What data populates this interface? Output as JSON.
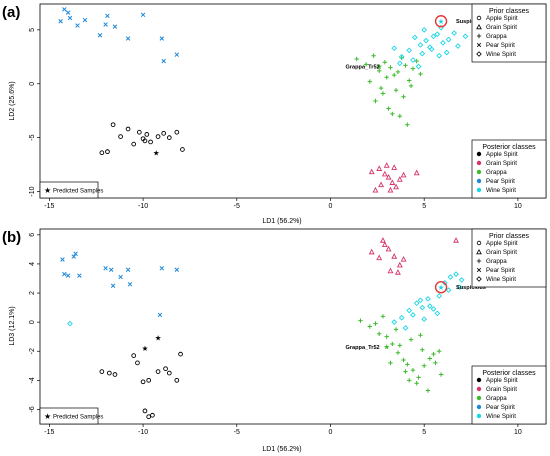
{
  "chart_data": [
    {
      "type": "scatter",
      "panel_label": "(a)",
      "xlabel": "LD1 (56.2%)",
      "ylabel": "LD2 (25.6%)",
      "xlim": [
        -15.5,
        11.5
      ],
      "ylim": [
        -10.6,
        7.4
      ],
      "xticks": [
        -15,
        -10,
        -5,
        0,
        5,
        10
      ],
      "yticks": [
        -10,
        -5,
        0,
        5
      ],
      "grid": false,
      "annotations": [
        {
          "text": "Suspicious",
          "x": 6.7,
          "y": 5.8
        },
        {
          "text": "Grappa_Tr52",
          "x": 0.8,
          "y": 1.6
        }
      ],
      "highlight": {
        "x": 5.9,
        "y": 5.8
      },
      "legends": {
        "prior": {
          "title": "Prior classes",
          "position": "top-right",
          "items": [
            {
              "label": "Apple Spirit",
              "symbol": "circle"
            },
            {
              "label": "Grain Spirit",
              "symbol": "triangle"
            },
            {
              "label": "Grappa",
              "symbol": "plus"
            },
            {
              "label": "Pear Spirit",
              "symbol": "cross"
            },
            {
              "label": "Wine Spirit",
              "symbol": "diamond"
            }
          ]
        },
        "posterior": {
          "title": "Posterior classes",
          "position": "bottom-right",
          "items": [
            {
              "label": "Apple Spirit",
              "color": "#000000"
            },
            {
              "label": "Grain Spirit",
              "color": "#d6336c"
            },
            {
              "label": "Grappa",
              "color": "#3cba2c"
            },
            {
              "label": "Pear Spirit",
              "color": "#1e88d8"
            },
            {
              "label": "Wine Spirit",
              "color": "#19d6e4"
            }
          ]
        },
        "predicted": {
          "label": "Predicted Samples",
          "position": "bottom-left"
        }
      },
      "series": [
        {
          "name": "Apple Spirit",
          "symbol": "circle",
          "color": "#000000",
          "x": [
            -11.6,
            -11.2,
            -10.8,
            -10.2,
            -10.0,
            -9.8,
            -9.6,
            -9.2,
            -8.9,
            -8.6,
            -8.2,
            -7.9,
            -12.2,
            -11.9,
            -10.5,
            -9.9
          ],
          "y": [
            -3.8,
            -4.9,
            -4.2,
            -4.5,
            -5.1,
            -4.7,
            -5.4,
            -4.9,
            -4.6,
            -5.0,
            -4.5,
            -6.1,
            -6.4,
            -6.3,
            -5.6,
            -5.3
          ]
        },
        {
          "name": "Grain Spirit",
          "symbol": "triangle",
          "color": "#d6336c",
          "x": [
            2.2,
            2.6,
            2.9,
            3.1,
            3.3,
            3.5,
            3.7,
            3.0,
            2.7,
            3.4,
            3.9,
            2.4,
            3.2,
            4.6
          ],
          "y": [
            -8.2,
            -7.9,
            -8.4,
            -8.7,
            -9.2,
            -9.6,
            -8.9,
            -7.6,
            -9.4,
            -7.8,
            -8.5,
            -9.9,
            -9.9,
            -8.3
          ]
        },
        {
          "name": "Grappa",
          "symbol": "plus",
          "color": "#3cba2c",
          "x": [
            1.4,
            1.9,
            2.3,
            2.6,
            2.9,
            3.2,
            3.4,
            3.6,
            3.8,
            4.0,
            4.2,
            4.4,
            4.6,
            4.8,
            2.1,
            2.7,
            3.0,
            3.5,
            3.9,
            4.3,
            2.4,
            3.1,
            3.7,
            4.1,
            2.8,
            3.3
          ],
          "y": [
            2.3,
            1.8,
            2.6,
            1.2,
            2.0,
            1.5,
            0.8,
            1.1,
            2.4,
            1.7,
            0.3,
            1.4,
            2.1,
            0.9,
            0.2,
            -0.4,
            0.6,
            -0.6,
            -1.2,
            -0.2,
            -1.6,
            -2.3,
            -3.0,
            -3.8,
            -0.9,
            -2.8
          ]
        },
        {
          "name": "Wine Spirit",
          "symbol": "diamond",
          "color": "#19d6e4",
          "x": [
            3.4,
            3.8,
            4.2,
            4.5,
            4.8,
            5.1,
            5.4,
            5.7,
            6.0,
            6.3,
            6.6,
            4.4,
            4.9,
            5.3,
            5.8,
            6.2,
            5.0,
            5.5,
            6.8,
            3.7,
            4.7,
            5.9,
            7.2
          ],
          "y": [
            3.3,
            2.5,
            3.1,
            4.3,
            3.6,
            4.0,
            3.2,
            4.6,
            3.8,
            4.1,
            4.7,
            2.2,
            2.8,
            3.4,
            2.6,
            2.9,
            5.0,
            4.4,
            3.5,
            1.9,
            1.6,
            5.2,
            4.4
          ]
        },
        {
          "name": "Pear Spirit",
          "symbol": "cross",
          "color": "#1e88d8",
          "x": [
            -14.2,
            -13.9,
            -13.5,
            -13.1,
            -14.4,
            -12.3,
            -11.5,
            -10.8,
            -12.0,
            -10.0,
            -9.0,
            -8.2,
            -14.0,
            -11.9,
            -8.9
          ],
          "y": [
            6.9,
            6.1,
            5.4,
            5.9,
            5.8,
            4.5,
            5.3,
            4.2,
            5.5,
            6.4,
            4.2,
            2.7,
            6.6,
            6.3,
            2.1
          ]
        }
      ],
      "predicted_samples": [
        {
          "x": -9.3,
          "y": -6.4,
          "class": "Apple Spirit"
        },
        {
          "x": 5.9,
          "y": 5.8,
          "class": "Wine Spirit"
        },
        {
          "x": 2.6,
          "y": 1.6,
          "class": "Grappa"
        }
      ]
    },
    {
      "type": "scatter",
      "panel_label": "(b)",
      "xlabel": "LD1 (56.2%)",
      "ylabel": "LD3 (12.1%)",
      "xlim": [
        -15.5,
        11.5
      ],
      "ylim": [
        -7.0,
        6.4
      ],
      "xticks": [
        -15,
        -10,
        -5,
        0,
        5,
        10
      ],
      "yticks": [
        -6,
        -4,
        -2,
        0,
        2,
        4,
        6
      ],
      "grid": false,
      "annotations": [
        {
          "text": "Suspicious",
          "x": 6.7,
          "y": 2.4
        },
        {
          "text": "Grappa_Tr52",
          "x": 0.8,
          "y": -1.7
        }
      ],
      "highlight": {
        "x": 5.9,
        "y": 2.4
      },
      "legends": {
        "prior": {
          "title": "Prior classes",
          "position": "top-right",
          "items": [
            {
              "label": "Apple Spirit",
              "symbol": "circle"
            },
            {
              "label": "Grain Spirit",
              "symbol": "triangle"
            },
            {
              "label": "Grappa",
              "symbol": "plus"
            },
            {
              "label": "Pear Spirit",
              "symbol": "cross"
            },
            {
              "label": "Wine Spirit",
              "symbol": "diamond"
            }
          ]
        },
        "posterior": {
          "title": "Posterior classes",
          "position": "bottom-right",
          "items": [
            {
              "label": "Apple Spirit",
              "color": "#000000"
            },
            {
              "label": "Grain Spirit",
              "color": "#d6336c"
            },
            {
              "label": "Grappa",
              "color": "#3cba2c"
            },
            {
              "label": "Pear Spirit",
              "color": "#1e88d8"
            },
            {
              "label": "Wine Spirit",
              "color": "#19d6e4"
            }
          ]
        },
        "predicted": {
          "label": "Predicted Samples",
          "position": "bottom-left"
        }
      },
      "series": [
        {
          "name": "Apple Spirit",
          "symbol": "circle",
          "color": "#000000",
          "x": [
            -12.2,
            -11.8,
            -11.5,
            -10.5,
            -10.0,
            -9.7,
            -9.2,
            -8.6,
            -8.2,
            -8.0,
            -9.9,
            -9.5,
            -9.7,
            -10.3,
            -8.8
          ],
          "y": [
            -3.4,
            -3.5,
            -3.6,
            -2.3,
            -4.1,
            -4.0,
            -3.4,
            -3.5,
            -4.0,
            -2.2,
            -6.1,
            -6.4,
            -6.5,
            -2.8,
            -3.2
          ]
        },
        {
          "name": "Grain Spirit",
          "symbol": "triangle",
          "color": "#d6336c",
          "x": [
            2.2,
            2.6,
            2.9,
            3.1,
            3.4,
            3.7,
            3.9,
            2.8,
            3.2,
            6.7,
            3.6
          ],
          "y": [
            4.8,
            4.4,
            5.3,
            5.0,
            4.5,
            3.9,
            4.3,
            5.6,
            3.5,
            5.6,
            3.4
          ]
        },
        {
          "name": "Grappa",
          "symbol": "plus",
          "color": "#3cba2c",
          "x": [
            1.6,
            2.1,
            2.6,
            3.0,
            3.3,
            3.6,
            3.9,
            4.1,
            4.4,
            4.7,
            5.0,
            5.3,
            5.6,
            5.9,
            2.8,
            3.5,
            4.3,
            4.9,
            5.5,
            3.2,
            4.0,
            4.6,
            5.2,
            3.7,
            4.8,
            5.8,
            2.4,
            4.2
          ],
          "y": [
            0.1,
            -0.3,
            -0.8,
            -1.0,
            -1.5,
            -2.1,
            -2.6,
            -2.9,
            -3.3,
            -3.8,
            -3.0,
            -2.5,
            -2.8,
            -3.6,
            0.4,
            -0.5,
            -1.2,
            -1.9,
            -2.2,
            -2.8,
            -3.4,
            -4.2,
            -4.7,
            -1.6,
            -0.9,
            -2.0,
            -0.1,
            -4.0
          ]
        },
        {
          "name": "Wine Spirit",
          "symbol": "diamond",
          "color": "#19d6e4",
          "x": [
            3.4,
            3.8,
            4.2,
            4.6,
            4.9,
            5.2,
            5.5,
            5.8,
            6.1,
            6.4,
            6.7,
            4.4,
            4.8,
            5.3,
            5.7,
            6.3,
            7.0,
            5.0,
            6.9,
            4.0
          ],
          "y": [
            0.0,
            0.3,
            0.8,
            1.3,
            1.0,
            1.6,
            0.9,
            1.8,
            2.7,
            3.1,
            3.3,
            0.5,
            1.5,
            1.1,
            0.6,
            2.2,
            2.9,
            0.2,
            2.4,
            -0.4
          ]
        },
        {
          "name": "Pear Spirit",
          "symbol": "cross",
          "color": "#1e88d8",
          "x": [
            -14.3,
            -14.0,
            -13.7,
            -13.4,
            -12.0,
            -11.7,
            -11.2,
            -10.8,
            -9.0,
            -8.2,
            -13.6,
            -10.7,
            -14.2,
            -9.1,
            -11.6
          ],
          "y": [
            4.3,
            3.2,
            4.5,
            3.2,
            3.7,
            3.6,
            3.1,
            3.6,
            3.7,
            3.6,
            4.7,
            2.6,
            3.3,
            0.5,
            2.5
          ]
        }
      ],
      "outliers": [
        {
          "x": -13.9,
          "y": -0.1,
          "class": "Wine Spirit",
          "symbol": "diamond"
        }
      ],
      "predicted_samples": [
        {
          "x": -9.2,
          "y": -1.1,
          "class": "Apple Spirit"
        },
        {
          "x": -9.9,
          "y": -1.8,
          "class": "Apple Spirit"
        },
        {
          "x": 5.9,
          "y": 2.4,
          "class": "Wine Spirit"
        },
        {
          "x": 3.0,
          "y": -1.7,
          "class": "Grappa"
        }
      ]
    }
  ]
}
